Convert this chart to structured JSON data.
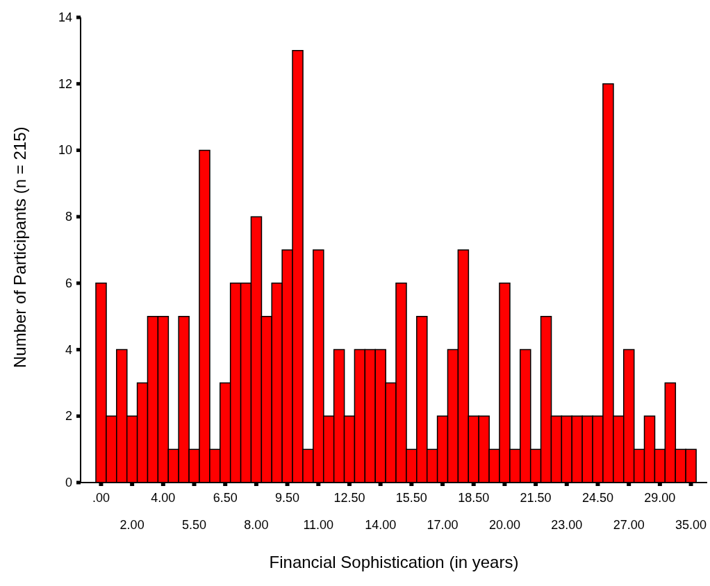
{
  "chart_data": {
    "type": "bar",
    "xlabel": "Financial Sophistication (in years)",
    "ylabel": "Number of Participants (n = 215)",
    "categories": [
      ".00",
      null,
      null,
      "2.00",
      null,
      null,
      "4.00",
      null,
      null,
      "5.50",
      null,
      null,
      "6.50",
      null,
      null,
      "8.00",
      null,
      null,
      "9.50",
      null,
      null,
      "11.00",
      null,
      null,
      "12.50",
      null,
      null,
      "14.00",
      null,
      null,
      "15.50",
      null,
      null,
      "17.00",
      null,
      null,
      "18.50",
      null,
      null,
      "20.00",
      null,
      null,
      "21.50",
      null,
      null,
      "23.00",
      null,
      null,
      "24.50",
      null,
      null,
      "27.00",
      null,
      null,
      "29.00",
      null,
      null,
      "35.00"
    ],
    "values": [
      6,
      2,
      4,
      2,
      3,
      5,
      5,
      1,
      5,
      1,
      10,
      1,
      3,
      6,
      6,
      8,
      5,
      6,
      7,
      13,
      1,
      7,
      2,
      4,
      2,
      4,
      4,
      4,
      3,
      6,
      1,
      5,
      1,
      2,
      4,
      7,
      2,
      2,
      1,
      6,
      1,
      4,
      1,
      5,
      2,
      2,
      2,
      2,
      2,
      12,
      2,
      4,
      1,
      2,
      1,
      3,
      1,
      1
    ],
    "color": "#ff0000",
    "ylim": [
      0,
      14
    ],
    "yticks": [
      0,
      2,
      4,
      6,
      8,
      10,
      12,
      14
    ],
    "grid": false,
    "legend": false
  }
}
